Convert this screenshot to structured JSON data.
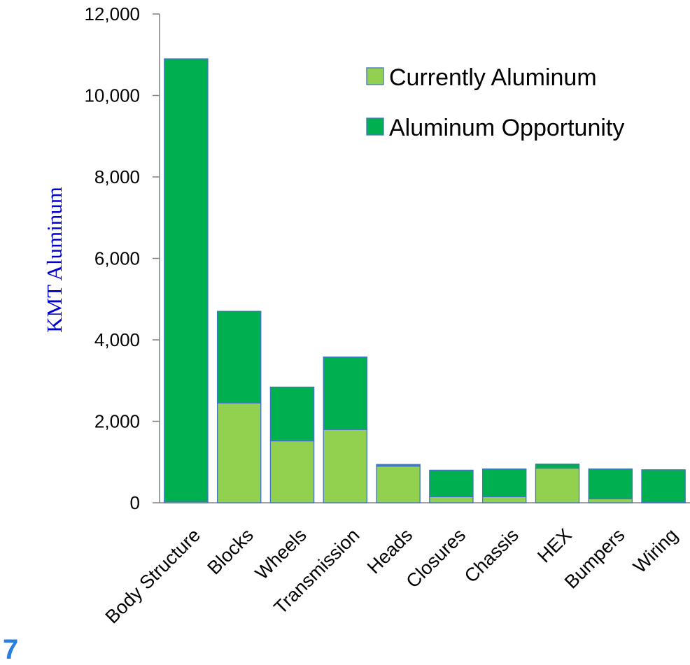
{
  "slide_number": "7",
  "chart_data": {
    "type": "bar",
    "stacked": true,
    "categories": [
      "Body Structure",
      "Blocks",
      "Wheels",
      "Transmission",
      "Heads",
      "Closures",
      "Chassis",
      "HEX",
      "Bumpers",
      "Wiring"
    ],
    "series": [
      {
        "name": "Currently Aluminum",
        "color": "#92d050",
        "values": [
          30,
          2450,
          1520,
          1800,
          900,
          150,
          150,
          850,
          100,
          10
        ]
      },
      {
        "name": "Aluminum Opportunity",
        "color": "#00b050",
        "values": [
          10870,
          2250,
          1320,
          1780,
          40,
          650,
          680,
          100,
          730,
          800
        ]
      }
    ],
    "ylabel": "KMT Aluminum",
    "ylabel_color": "#0000cc",
    "ylim": [
      0,
      12000
    ],
    "yticks": [
      0,
      2000,
      4000,
      6000,
      8000,
      10000,
      12000
    ],
    "ytick_labels": [
      "0",
      "2,000",
      "4,000",
      "6,000",
      "8,000",
      "10,000",
      "12,000"
    ],
    "bar_border_color": "#4472c4",
    "grid": false,
    "legend_position": "top-right"
  }
}
